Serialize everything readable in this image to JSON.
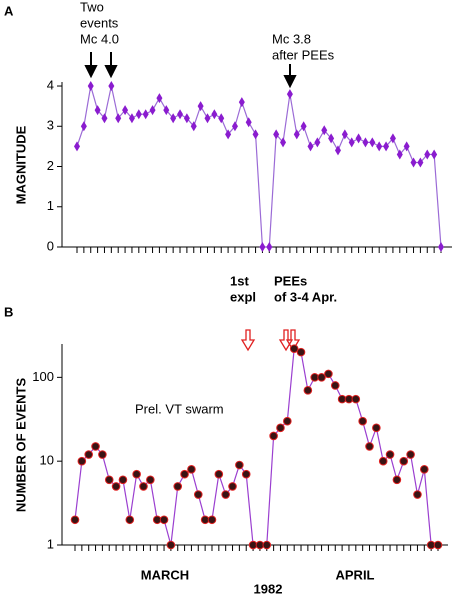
{
  "chart_data": [
    {
      "type": "line",
      "panel": "A",
      "ylabel": "MAGNITUDE",
      "categories": [
        null,
        null,
        null,
        null,
        null,
        null,
        null,
        null,
        null,
        null,
        null,
        null,
        null,
        null,
        null,
        null,
        null,
        null,
        null,
        null,
        null,
        null,
        null,
        null,
        null,
        null,
        null,
        null,
        null,
        null,
        null,
        null,
        null,
        null,
        null,
        null,
        null,
        null,
        null,
        null,
        null,
        null,
        null,
        null,
        null,
        null,
        null,
        null,
        null,
        null,
        null,
        null,
        null,
        null
      ],
      "values": [
        2.5,
        3.0,
        4.0,
        3.4,
        3.2,
        4.0,
        3.2,
        3.4,
        3.2,
        3.3,
        3.3,
        3.4,
        3.7,
        3.4,
        3.2,
        3.3,
        3.2,
        3.0,
        3.5,
        3.2,
        3.3,
        3.2,
        2.8,
        3.0,
        3.6,
        3.1,
        2.8,
        0,
        0,
        2.8,
        2.6,
        3.8,
        2.8,
        3.0,
        2.5,
        2.6,
        2.9,
        2.7,
        2.4,
        2.8,
        2.6,
        2.7,
        2.6,
        2.6,
        2.5,
        2.5,
        2.7,
        2.3,
        2.5,
        2.1,
        2.1,
        2.3,
        2.3,
        0
      ],
      "color": "#9b6bd6",
      "marker_color": "#8a1ccf",
      "marker": "diamond",
      "ylim": [
        0,
        4.1
      ],
      "yticks": [
        0,
        1,
        2,
        3,
        4
      ],
      "annotations": [
        {
          "lines": [
            "Two",
            "events",
            "Mc 4.0"
          ],
          "color": "#000000"
        },
        {
          "lines": [
            "Mc 3.8",
            "after PEEs"
          ],
          "color": "#000000"
        }
      ]
    },
    {
      "type": "line",
      "panel": "B",
      "ylabel": "NUMBER OF EVENTS",
      "yscale": "log",
      "categories": [
        null,
        null,
        null,
        null,
        null,
        null,
        null,
        null,
        null,
        null,
        null,
        null,
        null,
        null,
        null,
        null,
        null,
        null,
        null,
        null,
        null,
        null,
        null,
        null,
        null,
        null,
        null,
        null,
        null,
        null,
        null,
        null,
        null,
        null,
        null,
        null,
        null,
        null,
        null,
        null,
        null,
        null,
        null,
        null,
        null,
        null,
        null,
        null,
        null,
        null,
        null,
        null,
        null,
        null
      ],
      "values": [
        2,
        10,
        12,
        15,
        12,
        6,
        5,
        6,
        2,
        7,
        5,
        6,
        2,
        2,
        1,
        5,
        7,
        8,
        4,
        2,
        2,
        7,
        4,
        5,
        9,
        7,
        1,
        1,
        1,
        20,
        25,
        30,
        220,
        200,
        70,
        100,
        100,
        110,
        80,
        55,
        55,
        55,
        30,
        15,
        25,
        10,
        12,
        6,
        10,
        12,
        4,
        8,
        1,
        1
      ],
      "color": "#9b3fd0",
      "marker_color": "#3a1414",
      "marker_edge": "#e02020",
      "marker": "circle",
      "ylim": [
        1,
        250
      ],
      "yticks": [
        1,
        10,
        100
      ],
      "annotations": [
        {
          "lines": [
            "1st",
            "expl"
          ],
          "color": "#e02020"
        },
        {
          "lines": [
            "PEEs",
            "of 3-4 Apr."
          ],
          "color": "#e02020"
        },
        {
          "lines": [
            "Prel. VT swarm"
          ]
        }
      ],
      "x_labels": [
        "MARCH",
        "APRIL"
      ],
      "xlabel": "1982"
    }
  ]
}
